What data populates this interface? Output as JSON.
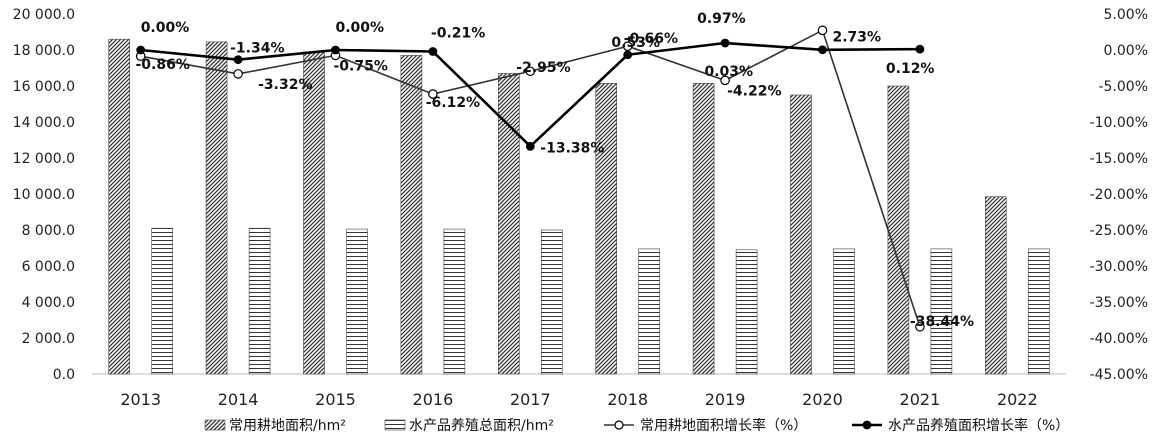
{
  "chart_data": {
    "type": "bar",
    "categories": [
      "2013",
      "2014",
      "2015",
      "2016",
      "2017",
      "2018",
      "2019",
      "2020",
      "2021",
      "2022"
    ],
    "y_left": {
      "min": 0,
      "max": 20000,
      "step": 2000,
      "tick_labels": [
        "0.0",
        "2 000.0",
        "4 000.0",
        "6 000.0",
        "8 000.0",
        "10 000.0",
        "12 000.0",
        "14 000.0",
        "16 000.0",
        "18 000.0",
        "20 000.0"
      ]
    },
    "y_right": {
      "min": -45,
      "max": 5,
      "step": 5,
      "tick_labels": [
        "-45.00%",
        "-40.00%",
        "-35.00%",
        "-30.00%",
        "-25.00%",
        "-20.00%",
        "-15.00%",
        "-10.00%",
        "-5.00%",
        "0.00%",
        "5.00%"
      ]
    },
    "series": [
      {
        "name": "常用耕地面积/hm²",
        "type": "bar",
        "axis": "left",
        "pattern": "diagonal",
        "values": [
          18600,
          18450,
          17900,
          17700,
          16700,
          16150,
          16150,
          15500,
          16000,
          9850
        ]
      },
      {
        "name": "水产品养殖总面积/hm²",
        "type": "bar",
        "axis": "left",
        "pattern": "horizontal",
        "values": [
          8100,
          8100,
          8050,
          8050,
          8000,
          6950,
          6900,
          6950,
          6950,
          6950
        ]
      },
      {
        "name": "常用耕地面积增长率（%）",
        "type": "line",
        "axis": "right",
        "marker": "open-circle",
        "values": [
          -0.86,
          -3.32,
          -0.75,
          -6.12,
          -2.95,
          0.53,
          -4.22,
          2.73,
          -38.44,
          null
        ],
        "labels": [
          "-0.86%",
          "-3.32%",
          "-0.75%",
          "-6.12%",
          "-2.95%",
          "0.53%",
          "-4.22%",
          "2.73%",
          "-38.44%",
          ""
        ]
      },
      {
        "name": "水产品养殖面积增长率（%）",
        "type": "line",
        "axis": "right",
        "marker": "filled-circle",
        "values": [
          0.0,
          -1.34,
          0.0,
          -0.21,
          -13.38,
          -0.66,
          0.97,
          0.03,
          0.12,
          null
        ],
        "labels": [
          "0.00%",
          "-1.34%",
          "0.00%",
          "-0.21%",
          "-13.38%",
          "-0.66%",
          "0.97%",
          "0.03%",
          "0.12%",
          ""
        ]
      }
    ],
    "legend_position": "bottom",
    "grid": false
  }
}
